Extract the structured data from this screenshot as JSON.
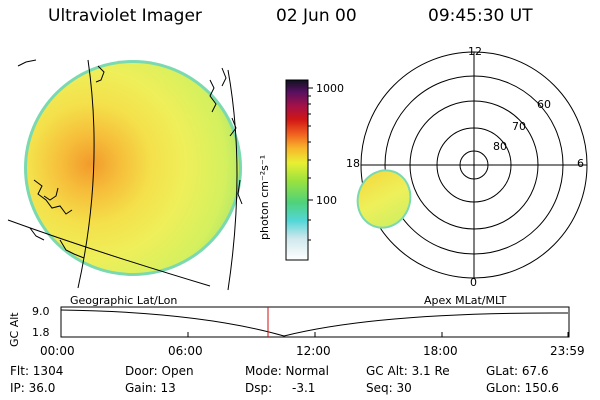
{
  "header": {
    "instrument": "Ultraviolet Imager",
    "date": "02 Jun 00",
    "time": "09:45:30 UT"
  },
  "colorbar": {
    "unit_label": "photon cm⁻²s⁻¹",
    "ticks": [
      "1000",
      "100"
    ]
  },
  "polar_plot": {
    "mlt_labels": [
      "12",
      "18",
      "6",
      "0"
    ],
    "mlat_labels": [
      "60",
      "70",
      "80"
    ]
  },
  "timeline": {
    "left_label": "Geographic Lat/Lon",
    "right_label": "Apex MLat/MLT",
    "axis_title": "GC Alt",
    "y_ticks": [
      "9.0",
      "1.8"
    ],
    "x_ticks": [
      "00:00",
      "06:00",
      "12:00",
      "18:00",
      "23:59"
    ]
  },
  "info": {
    "flt": "Flt: 1304",
    "ip": "IP: 36.0",
    "door": "Door: Open",
    "gain": "Gain: 13",
    "mode": "Mode: Normal",
    "dsp_label": "Dsp:",
    "dsp_value": "-3.1",
    "gc_alt": "GC Alt: 3.1 Re",
    "seq": "Seq: 30",
    "glat": "GLat: 67.6",
    "glon": "GLon: 150.6"
  }
}
